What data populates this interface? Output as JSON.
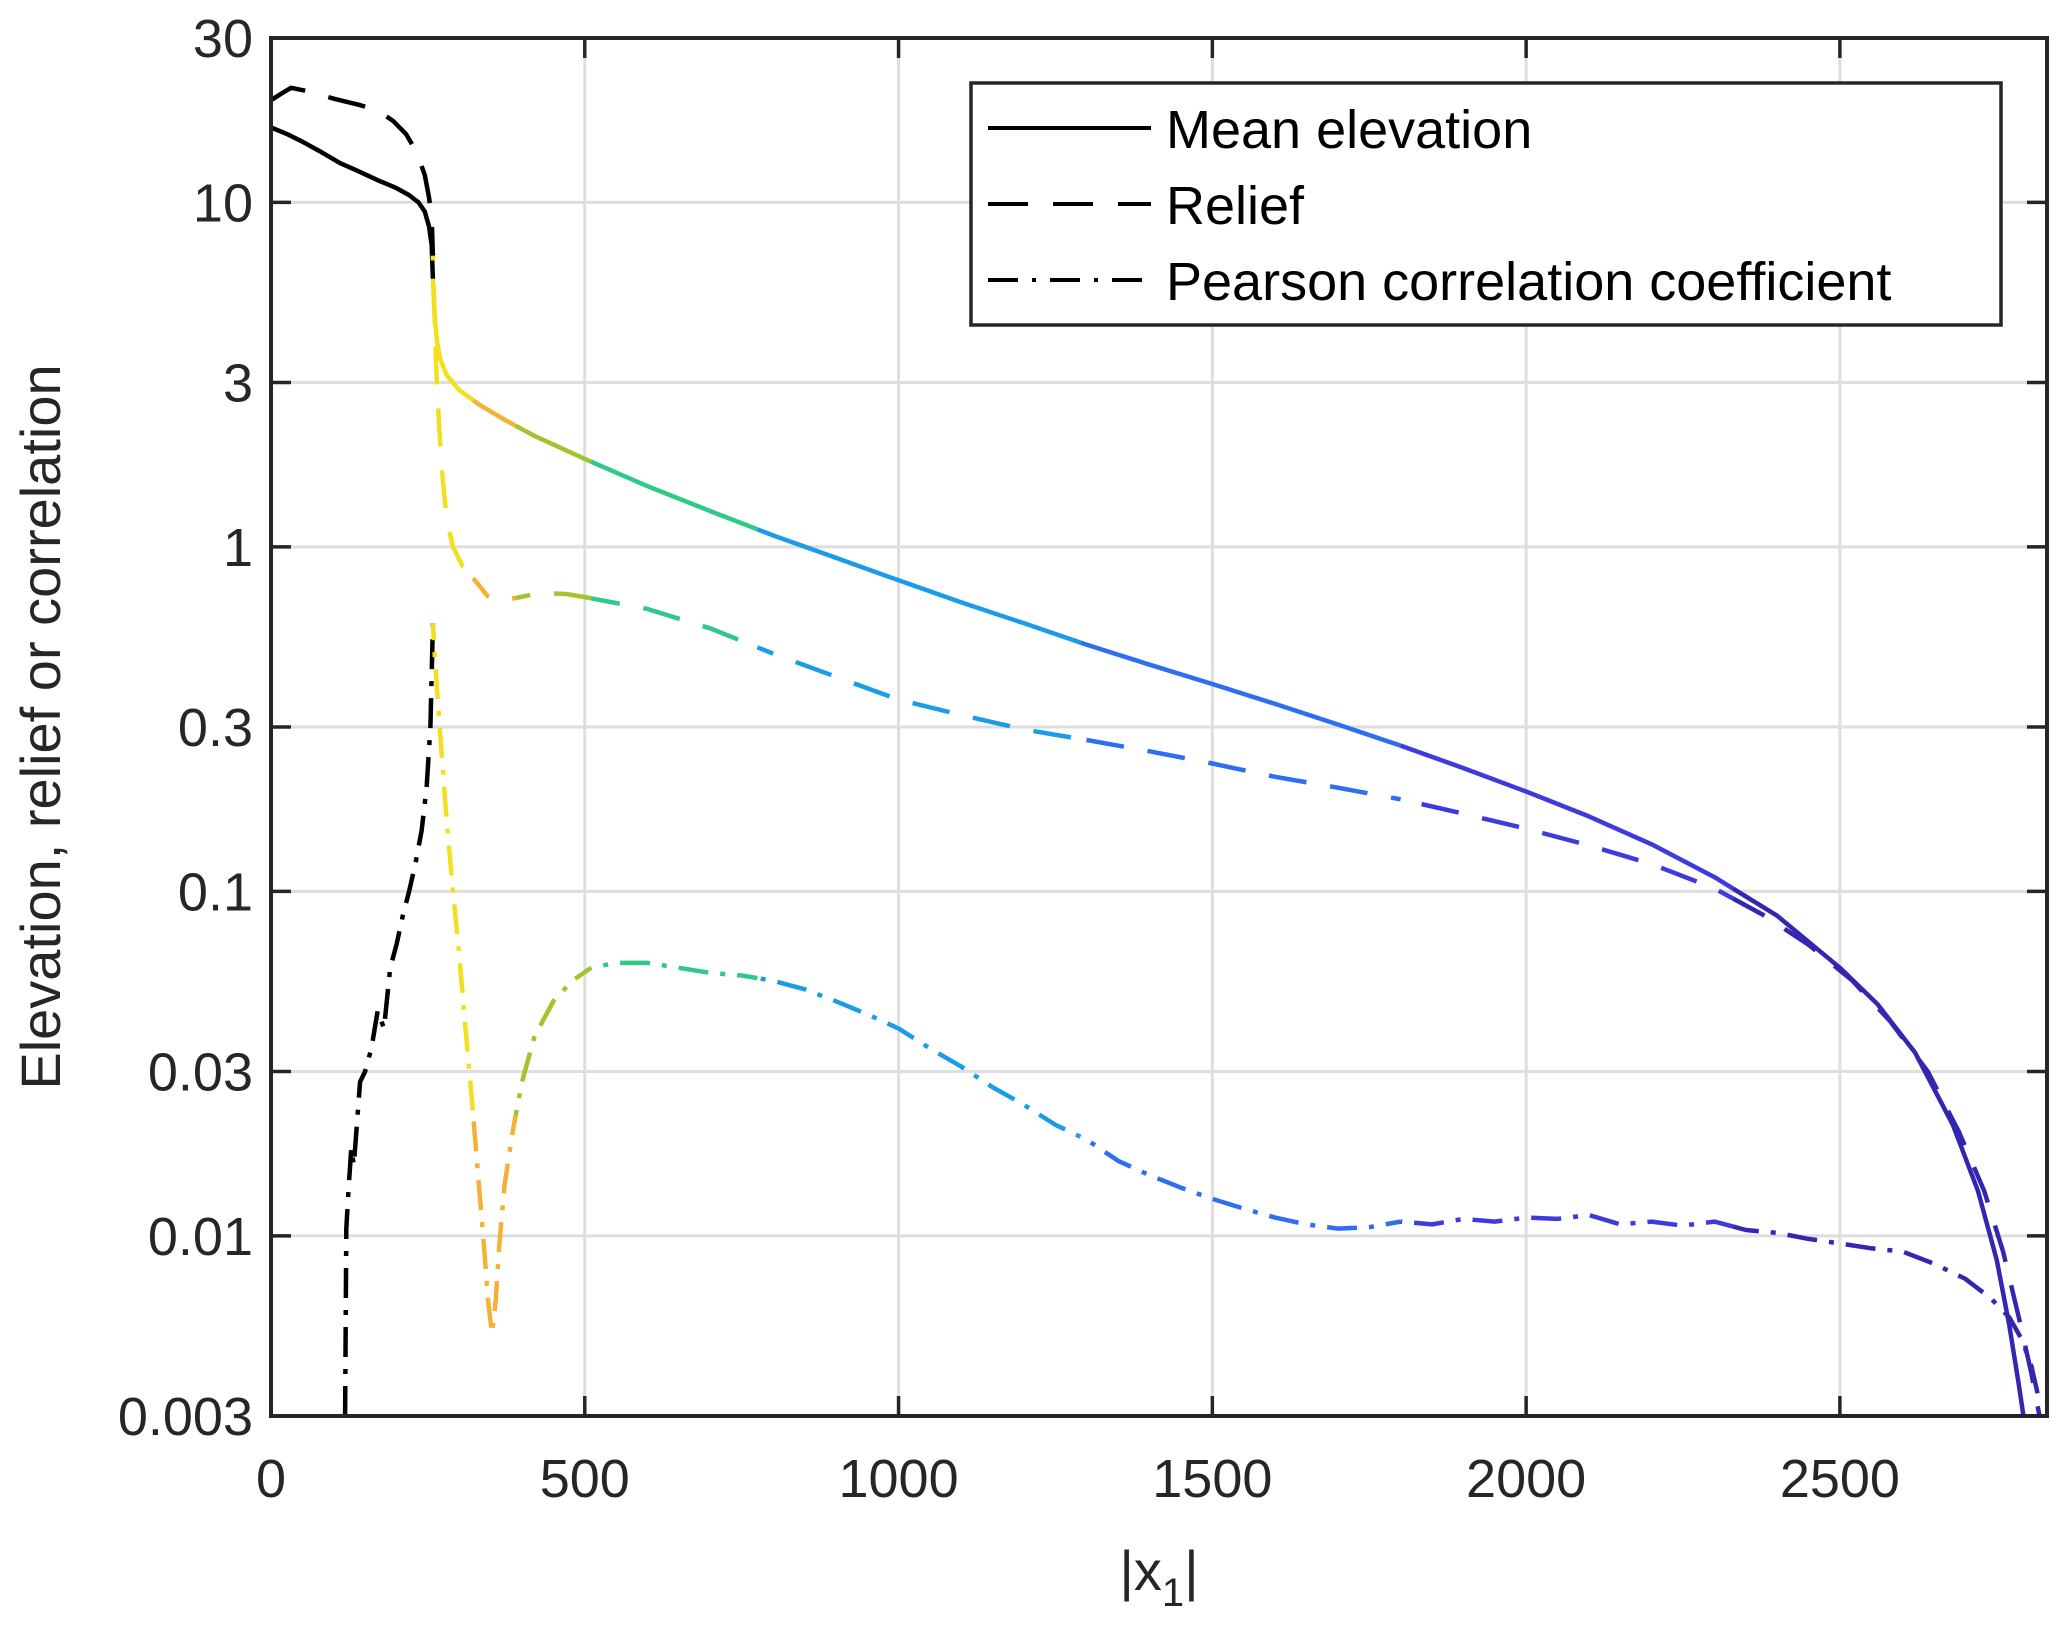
{
  "chart_data": {
    "type": "line",
    "title": "",
    "xlabel": "|x",
    "xlabel_subscript": "1",
    "xlabel_suffix": "|",
    "ylabel": "Elevation, relief or correlation",
    "xlim": [
      0,
      2830
    ],
    "ylim": [
      0.003,
      30
    ],
    "yscale": "log",
    "grid": true,
    "xticks": [
      0,
      500,
      1000,
      1500,
      2000,
      2500
    ],
    "xtick_labels": [
      "0",
      "500",
      "1000",
      "1500",
      "2000",
      "2500"
    ],
    "yticks": [
      0.003,
      0.01,
      0.03,
      0.1,
      0.3,
      1,
      3,
      10,
      30
    ],
    "ytick_labels": [
      "0.003",
      "0.01",
      "0.03",
      "0.1",
      "0.3",
      "1",
      "3",
      "10",
      "30"
    ],
    "legend": {
      "location": "top-right",
      "entries": [
        {
          "label": "Mean elevation",
          "style": "solid"
        },
        {
          "label": "Relief",
          "style": "dashed"
        },
        {
          "label": "Pearson correlation coefficient",
          "style": "dashdot"
        }
      ]
    },
    "color_segments": [
      {
        "from": 0,
        "to": 258,
        "color": "#000000"
      },
      {
        "from": 258,
        "to": 322,
        "color": "#f2e01e"
      },
      {
        "from": 322,
        "to": 390,
        "color": "#f5b134"
      },
      {
        "from": 390,
        "to": 510,
        "color": "#a3c42c"
      },
      {
        "from": 510,
        "to": 775,
        "color": "#2fc98a"
      },
      {
        "from": 775,
        "to": 1290,
        "color": "#1b9ce8"
      },
      {
        "from": 1290,
        "to": 1800,
        "color": "#2f6df2"
      },
      {
        "from": 1800,
        "to": 2330,
        "color": "#3d3ade"
      },
      {
        "from": 2330,
        "to": 2830,
        "color": "#3326b0"
      }
    ],
    "series": [
      {
        "name": "Mean elevation",
        "style": "solid",
        "x": [
          0,
          25,
          50,
          80,
          110,
          140,
          170,
          200,
          220,
          235,
          245,
          252,
          256,
          258,
          260,
          262,
          265,
          270,
          280,
          300,
          330,
          370,
          420,
          500,
          600,
          700,
          800,
          900,
          1000,
          1100,
          1200,
          1300,
          1400,
          1500,
          1600,
          1700,
          1800,
          1900,
          2000,
          2100,
          2200,
          2300,
          2400,
          2500,
          2560,
          2620,
          2680,
          2720,
          2750,
          2770,
          2785,
          2795
        ],
        "y": [
          16.5,
          15.8,
          15.0,
          14.0,
          13.0,
          12.3,
          11.6,
          11.0,
          10.5,
          10.0,
          9.4,
          8.5,
          7.5,
          6.0,
          5.0,
          4.4,
          3.9,
          3.5,
          3.15,
          2.85,
          2.6,
          2.35,
          2.1,
          1.8,
          1.5,
          1.27,
          1.08,
          0.93,
          0.8,
          0.69,
          0.6,
          0.52,
          0.455,
          0.4,
          0.35,
          0.305,
          0.265,
          0.228,
          0.195,
          0.165,
          0.137,
          0.11,
          0.085,
          0.06,
          0.047,
          0.034,
          0.021,
          0.0135,
          0.0085,
          0.0055,
          0.0037,
          0.0028
        ]
      },
      {
        "name": "Relief",
        "style": "dashed",
        "x": [
          0,
          15,
          32,
          60,
          100,
          140,
          170,
          195,
          215,
          232,
          245,
          252,
          256,
          258,
          260,
          263,
          267,
          272,
          280,
          290,
          305,
          325,
          345,
          360,
          390,
          428,
          470,
          500,
          600,
          700,
          800,
          900,
          1000,
          1100,
          1200,
          1300,
          1400,
          1500,
          1600,
          1700,
          1800,
          1900,
          2000,
          2100,
          2200,
          2300,
          2380,
          2450,
          2520,
          2580,
          2640,
          2690,
          2730,
          2760,
          2785,
          2805,
          2818
        ],
        "y": [
          19.8,
          20.6,
          21.5,
          21.0,
          20.0,
          19.2,
          18.5,
          17.2,
          15.8,
          14.0,
          12.0,
          10.3,
          9.0,
          7.0,
          5.0,
          3.4,
          2.4,
          1.7,
          1.2,
          1.0,
          0.88,
          0.8,
          0.72,
          0.7,
          0.71,
          0.735,
          0.73,
          0.715,
          0.66,
          0.58,
          0.49,
          0.42,
          0.36,
          0.325,
          0.295,
          0.275,
          0.255,
          0.235,
          0.215,
          0.2,
          0.185,
          0.168,
          0.152,
          0.136,
          0.12,
          0.102,
          0.085,
          0.07,
          0.055,
          0.042,
          0.03,
          0.02,
          0.0135,
          0.009,
          0.0058,
          0.004,
          0.003
        ]
      },
      {
        "name": "Pearson correlation coefficient",
        "style": "dashdot",
        "x": [
          118,
          120,
          124,
          128,
          132,
          136,
          142,
          150,
          160,
          170,
          180,
          190,
          200,
          210,
          220,
          230,
          240,
          248,
          254,
          258,
          262,
          270,
          280,
          290,
          300,
          310,
          320,
          330,
          340,
          346,
          352,
          358,
          364,
          372,
          385,
          400,
          420,
          450,
          480,
          510,
          550,
          600,
          650,
          700,
          750,
          800,
          850,
          900,
          950,
          1000,
          1050,
          1100,
          1150,
          1200,
          1250,
          1300,
          1350,
          1400,
          1450,
          1500,
          1550,
          1600,
          1650,
          1700,
          1750,
          1800,
          1850,
          1900,
          1950,
          2000,
          2050,
          2100,
          2150,
          2200,
          2250,
          2300,
          2350,
          2400,
          2450,
          2500,
          2550,
          2600,
          2650,
          2700,
          2740,
          2770,
          2790,
          2805,
          2818
        ],
        "y": [
          0.003,
          0.0105,
          0.014,
          0.018,
          0.016,
          0.02,
          0.028,
          0.03,
          0.035,
          0.045,
          0.04,
          0.06,
          0.07,
          0.085,
          0.1,
          0.12,
          0.15,
          0.2,
          0.3,
          0.6,
          0.45,
          0.28,
          0.16,
          0.1,
          0.065,
          0.04,
          0.025,
          0.015,
          0.009,
          0.0065,
          0.0052,
          0.0065,
          0.0095,
          0.014,
          0.02,
          0.028,
          0.038,
          0.048,
          0.055,
          0.06,
          0.062,
          0.062,
          0.06,
          0.058,
          0.057,
          0.055,
          0.052,
          0.048,
          0.044,
          0.04,
          0.035,
          0.031,
          0.027,
          0.024,
          0.021,
          0.019,
          0.0165,
          0.015,
          0.0138,
          0.0128,
          0.012,
          0.0113,
          0.0108,
          0.0105,
          0.0106,
          0.011,
          0.0108,
          0.0112,
          0.011,
          0.0113,
          0.0112,
          0.0115,
          0.0108,
          0.011,
          0.0107,
          0.011,
          0.0104,
          0.0102,
          0.0098,
          0.0095,
          0.0092,
          0.009,
          0.0083,
          0.0075,
          0.0066,
          0.0058,
          0.005,
          0.0042,
          0.0033
        ]
      }
    ]
  }
}
